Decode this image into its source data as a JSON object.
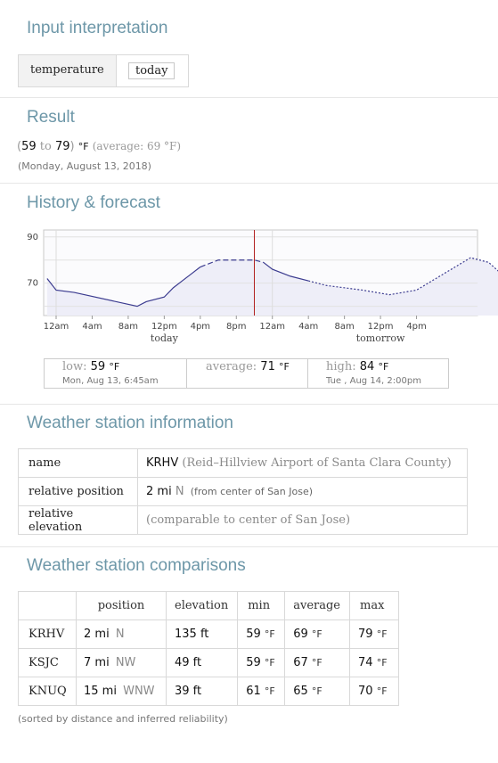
{
  "input_interpretation": {
    "title": "Input interpretation",
    "items": [
      "temperature",
      "today"
    ]
  },
  "result": {
    "title": "Result",
    "open_paren": "(",
    "low": "59",
    "to": "to",
    "high": "79",
    "close_paren": ")",
    "unit": "°F",
    "avg_text": "(average: 69 °F)",
    "date": "(Monday, August 13, 2018)"
  },
  "history": {
    "title": "History & forecast",
    "day_labels": [
      "today",
      "tomorrow"
    ],
    "summary": {
      "low_label": "low:",
      "low_value": "59",
      "low_unit": "°F",
      "low_time": "Mon, Aug 13, 6:45am",
      "avg_label": "average:",
      "avg_value": "71",
      "avg_unit": "°F",
      "high_label": "high:",
      "high_value": "84",
      "high_unit": "°F",
      "high_time": "Tue , Aug 14, 2:00pm"
    }
  },
  "chart_data": {
    "type": "line",
    "title": "",
    "xlabel": "",
    "ylabel": "",
    "x_tick_labels": [
      "12am",
      "4am",
      "8am",
      "12pm",
      "4pm",
      "8pm",
      "12am",
      "4am",
      "8am",
      "12pm",
      "4pm"
    ],
    "y_tick_labels": [
      "90",
      "70"
    ],
    "ylim": [
      56,
      93
    ],
    "grid": true,
    "now_marker_hour": 22,
    "series": [
      {
        "style": "solid",
        "x": [
          -1,
          0,
          2,
          9,
          10,
          12,
          13,
          14,
          15,
          16
        ],
        "y": [
          72,
          67,
          66,
          60,
          62,
          64,
          68,
          71,
          74,
          77
        ]
      },
      {
        "style": "dashed",
        "x": [
          16,
          18,
          20,
          22,
          23
        ],
        "y": [
          77,
          80,
          80,
          80,
          79
        ]
      },
      {
        "style": "solid",
        "x": [
          23,
          24,
          26,
          28
        ],
        "y": [
          79,
          76,
          73,
          71
        ]
      },
      {
        "style": "dotted",
        "x": [
          28,
          30,
          34,
          37,
          40,
          43,
          46,
          48,
          50
        ],
        "y": [
          71,
          69,
          67,
          65,
          67,
          74,
          81,
          79,
          72
        ]
      }
    ]
  },
  "station_info": {
    "title": "Weather station information",
    "rows": [
      {
        "label": "name",
        "value": "KRHV",
        "detail": "(Reid–Hillview Airport of Santa Clara County)"
      },
      {
        "label": "relative position",
        "value": "2 mi",
        "dir": "N",
        "detail": "(from center of San Jose)"
      },
      {
        "label": "relative elevation",
        "value": "",
        "detail": "(comparable to center of San Jose)"
      }
    ]
  },
  "comparisons": {
    "title": "Weather station comparisons",
    "headers": [
      "position",
      "elevation",
      "min",
      "average",
      "max"
    ],
    "rows": [
      {
        "station": "KRHV",
        "dist": "2 mi",
        "dir": "N",
        "elev": "135 ft",
        "min": "59",
        "avg": "69",
        "max": "79"
      },
      {
        "station": "KSJC",
        "dist": "7 mi",
        "dir": "NW",
        "elev": "49 ft",
        "min": "59",
        "avg": "67",
        "max": "74"
      },
      {
        "station": "KNUQ",
        "dist": "15 mi",
        "dir": "WNW",
        "elev": "39 ft",
        "min": "61",
        "avg": "65",
        "max": "70"
      }
    ],
    "unit": "°F",
    "footnote": "(sorted by distance and inferred reliability)"
  },
  "colors": {
    "title": "#6d97a8",
    "line": "#3b3b8f",
    "now_marker": "#b22222",
    "area_fill": "#eeeef8"
  }
}
